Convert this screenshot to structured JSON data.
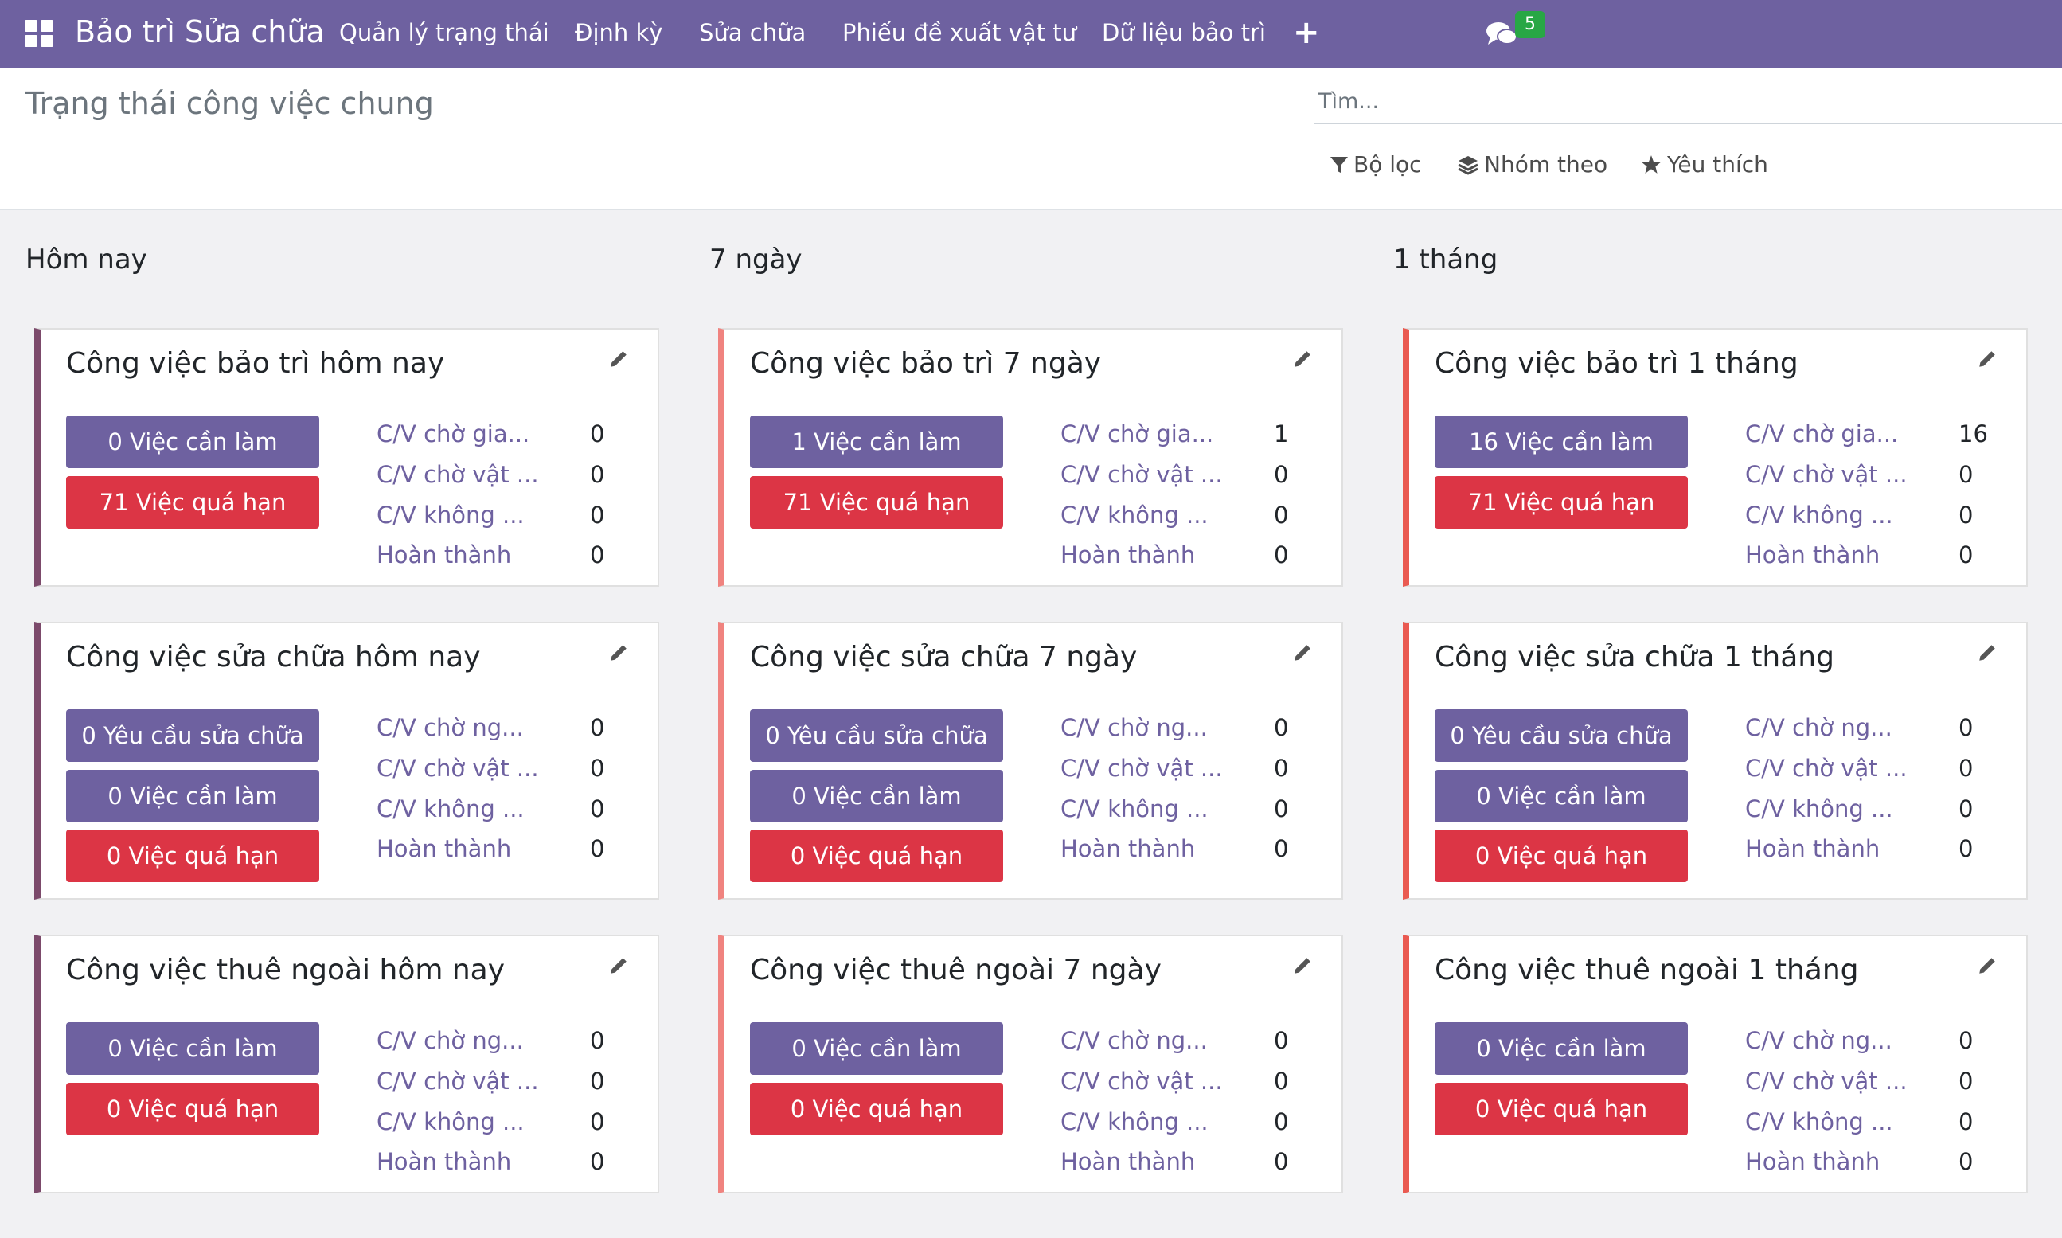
{
  "navbar": {
    "brand": "Bảo trì Sửa chữa",
    "menu": [
      "Quản lý trạng thái",
      "Định kỳ",
      "Sửa chữa",
      "Phiếu đề xuất vật tư",
      "Dữ liệu bảo trì"
    ],
    "plus": "+",
    "chat_count": "5"
  },
  "control_panel": {
    "title": "Trạng thái công việc chung",
    "search_placeholder": "Tìm...",
    "filters": "Bộ lọc",
    "group_by": "Nhóm theo",
    "favorites": "Yêu thích"
  },
  "columns": [
    "Hôm nay",
    "7 ngày",
    "1 tháng"
  ],
  "cards": {
    "c11": {
      "title": "Công việc bảo trì hôm nay",
      "buttons": [
        "0 Việc cần làm",
        "71 Việc quá hạn"
      ],
      "stats": [
        [
          "C/V chờ gia...",
          "0"
        ],
        [
          "C/V chờ vật ...",
          "0"
        ],
        [
          "C/V không ...",
          "0"
        ],
        [
          "Hoàn thành",
          "0"
        ]
      ]
    },
    "c12": {
      "title": "Công việc bảo trì 7 ngày",
      "buttons": [
        "1 Việc cần làm",
        "71 Việc quá hạn"
      ],
      "stats": [
        [
          "C/V chờ gia...",
          "1"
        ],
        [
          "C/V chờ vật ...",
          "0"
        ],
        [
          "C/V không ...",
          "0"
        ],
        [
          "Hoàn thành",
          "0"
        ]
      ]
    },
    "c13": {
      "title": "Công việc bảo trì 1 tháng",
      "buttons": [
        "16 Việc cần làm",
        "71 Việc quá hạn"
      ],
      "stats": [
        [
          "C/V chờ gia...",
          "16"
        ],
        [
          "C/V chờ vật ...",
          "0"
        ],
        [
          "C/V không ...",
          "0"
        ],
        [
          "Hoàn thành",
          "0"
        ]
      ]
    },
    "c21": {
      "title": "Công việc sửa chữa hôm nay",
      "buttons": [
        "0 Yêu cầu sửa chữa",
        "0 Việc cần làm",
        "0 Việc quá hạn"
      ],
      "stats": [
        [
          "C/V chờ ng...",
          "0"
        ],
        [
          "C/V chờ vật ...",
          "0"
        ],
        [
          "C/V không ...",
          "0"
        ],
        [
          "Hoàn thành",
          "0"
        ]
      ]
    },
    "c22": {
      "title": "Công việc sửa chữa 7 ngày",
      "buttons": [
        "0 Yêu cầu sửa chữa",
        "0 Việc cần làm",
        "0 Việc quá hạn"
      ],
      "stats": [
        [
          "C/V chờ ng...",
          "0"
        ],
        [
          "C/V chờ vật ...",
          "0"
        ],
        [
          "C/V không ...",
          "0"
        ],
        [
          "Hoàn thành",
          "0"
        ]
      ]
    },
    "c23": {
      "title": "Công việc sửa chữa 1 tháng",
      "buttons": [
        "0 Yêu cầu sửa chữa",
        "0 Việc cần làm",
        "0 Việc quá hạn"
      ],
      "stats": [
        [
          "C/V chờ ng...",
          "0"
        ],
        [
          "C/V chờ vật ...",
          "0"
        ],
        [
          "C/V không ...",
          "0"
        ],
        [
          "Hoàn thành",
          "0"
        ]
      ]
    },
    "c31": {
      "title": "Công việc thuê ngoài hôm nay",
      "buttons": [
        "0 Việc cần làm",
        "0 Việc quá hạn"
      ],
      "stats": [
        [
          "C/V chờ ng...",
          "0"
        ],
        [
          "C/V chờ vật ...",
          "0"
        ],
        [
          "C/V không ...",
          "0"
        ],
        [
          "Hoàn thành",
          "0"
        ]
      ]
    },
    "c32": {
      "title": "Công việc thuê ngoài 7 ngày",
      "buttons": [
        "0 Việc cần làm",
        "0 Việc quá hạn"
      ],
      "stats": [
        [
          "C/V chờ ng...",
          "0"
        ],
        [
          "C/V chờ vật ...",
          "0"
        ],
        [
          "C/V không ...",
          "0"
        ],
        [
          "Hoàn thành",
          "0"
        ]
      ]
    },
    "c33": {
      "title": "Công việc thuê ngoài 1 tháng",
      "buttons": [
        "0 Việc cần làm",
        "0 Việc quá hạn"
      ],
      "stats": [
        [
          "C/V chờ ng...",
          "0"
        ],
        [
          "C/V chờ vật ...",
          "0"
        ],
        [
          "C/V không ...",
          "0"
        ],
        [
          "Hoàn thành",
          "0"
        ]
      ]
    }
  },
  "colors": {
    "primary": "#6e61a0",
    "danger": "#dc3545",
    "accent_today": "#7c4a6b",
    "accent_7days": "#f0837f",
    "accent_month": "#ea5a51",
    "badge": "#28a745"
  },
  "icons": [
    "apps-icon",
    "plus-icon",
    "chat-icon",
    "filter-icon",
    "layers-icon",
    "star-icon",
    "pencil-icon"
  ]
}
